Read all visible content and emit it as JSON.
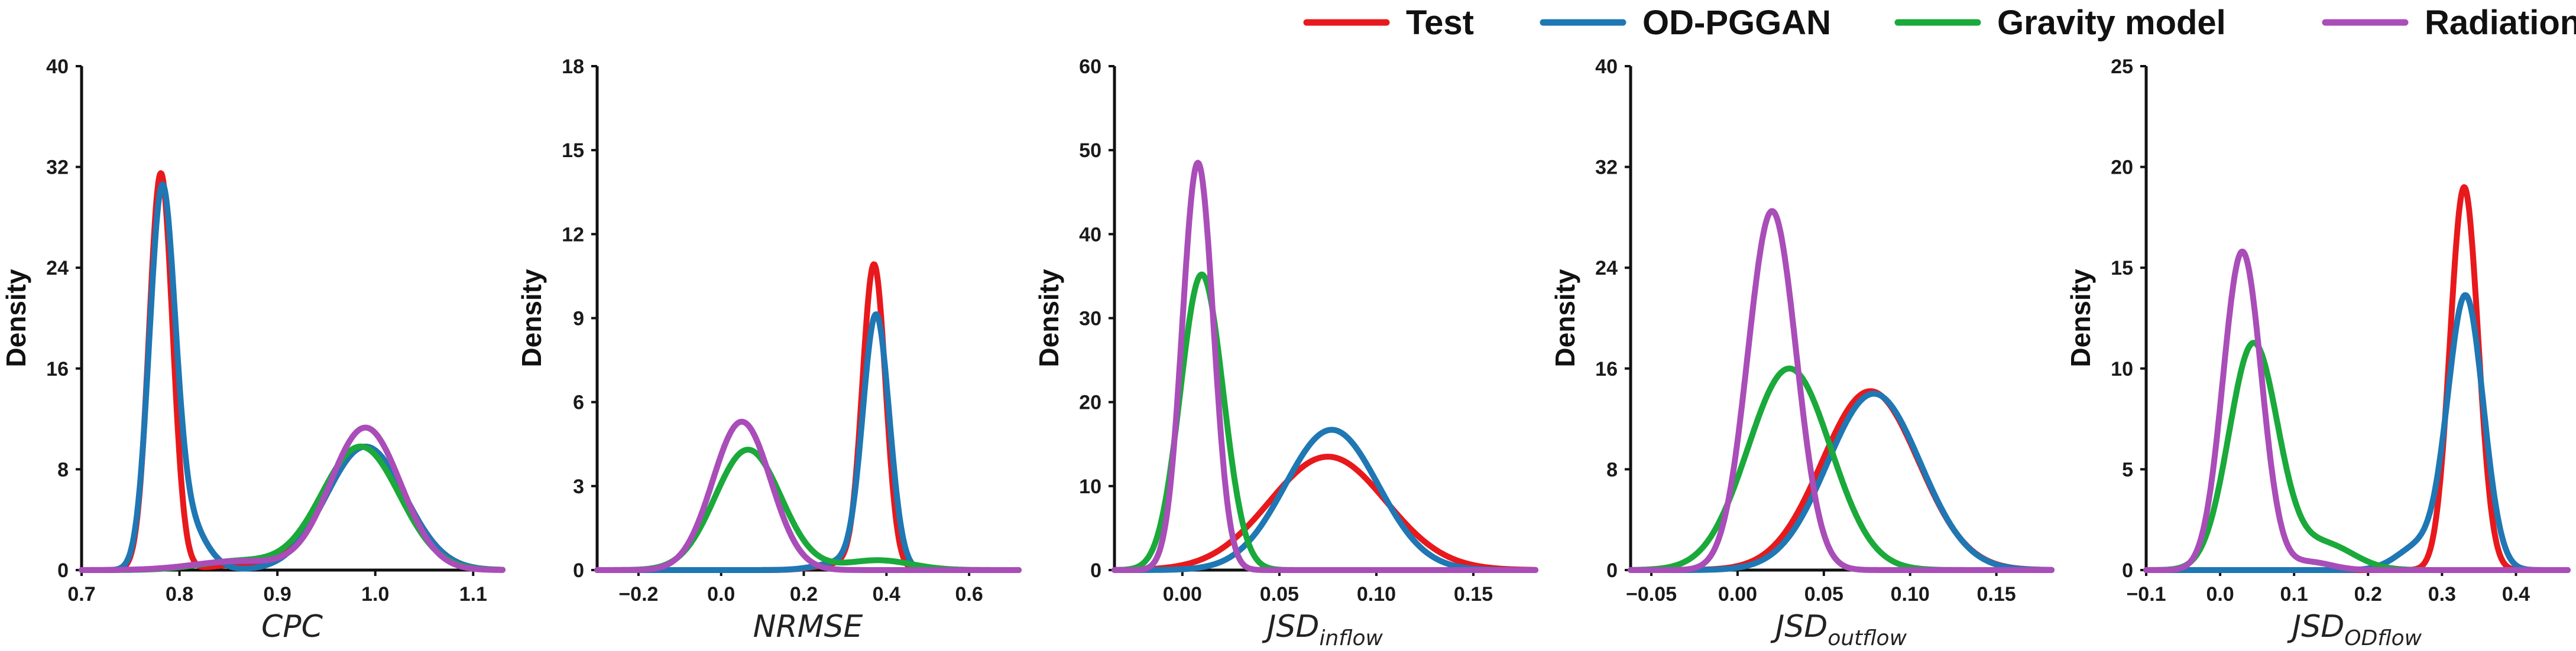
{
  "legend": [
    {
      "label": "Test",
      "color": "#e8191c"
    },
    {
      "label": "OD-PGGAN",
      "color": "#1f77b4"
    },
    {
      "label": "Gravity model",
      "color": "#1aa93a"
    },
    {
      "label": "Radiation",
      "color": "#a94db8"
    }
  ],
  "chart_data": [
    {
      "type": "line",
      "title": "",
      "xlabel": "CPC",
      "xlabel_sub": "",
      "ylabel": "Density",
      "xlim": [
        0.7,
        1.13
      ],
      "ylim": [
        0,
        40
      ],
      "xticks": [
        0.7,
        0.8,
        0.9,
        1.0,
        1.1
      ],
      "xtick_labels": [
        "0.7",
        "0.8",
        "0.9",
        "1.0",
        "1.1"
      ],
      "yticks": [
        0,
        8,
        16,
        24,
        32,
        40
      ],
      "ytick_labels": [
        "0",
        "8",
        "16",
        "24",
        "32",
        "40"
      ],
      "series": [
        {
          "name": "Test",
          "components": [
            {
              "mu": 0.781,
              "sigma": 0.012,
              "peak": 31.5
            },
            {
              "mu": 0.86,
              "sigma": 0.03,
              "peak": 0.4
            },
            {
              "mu": 0.99,
              "sigma": 0.04,
              "peak": 9.8
            }
          ]
        },
        {
          "name": "OD-PGGAN",
          "components": [
            {
              "mu": 0.782,
              "sigma": 0.013,
              "peak": 28.5
            },
            {
              "mu": 0.805,
              "sigma": 0.02,
              "peak": 4.0
            },
            {
              "mu": 0.99,
              "sigma": 0.04,
              "peak": 9.8
            }
          ]
        },
        {
          "name": "Gravity model",
          "components": [
            {
              "mu": 0.985,
              "sigma": 0.04,
              "peak": 9.8
            },
            {
              "mu": 0.86,
              "sigma": 0.04,
              "peak": 0.7
            }
          ]
        },
        {
          "name": "Radiation",
          "components": [
            {
              "mu": 0.99,
              "sigma": 0.036,
              "peak": 11.3
            },
            {
              "mu": 0.86,
              "sigma": 0.045,
              "peak": 0.7
            }
          ]
        }
      ]
    },
    {
      "type": "line",
      "title": "",
      "xlabel": "NRMSE",
      "xlabel_sub": "",
      "ylabel": "Density",
      "xlim": [
        -0.3,
        0.72
      ],
      "ylim": [
        0,
        18
      ],
      "xticks": [
        -0.2,
        0.0,
        0.2,
        0.4,
        0.6
      ],
      "xtick_labels": [
        "−0.2",
        "0.0",
        "0.2",
        "0.4",
        "0.6"
      ],
      "yticks": [
        0,
        3,
        6,
        9,
        12,
        15,
        18
      ],
      "ytick_labels": [
        "0",
        "3",
        "6",
        "9",
        "12",
        "15",
        "18"
      ],
      "series": [
        {
          "name": "Test",
          "components": [
            {
              "mu": 0.37,
              "sigma": 0.028,
              "peak": 10.8
            },
            {
              "mu": 0.3,
              "sigma": 0.06,
              "peak": 0.25
            }
          ]
        },
        {
          "name": "OD-PGGAN",
          "components": [
            {
              "mu": 0.375,
              "sigma": 0.032,
              "peak": 9.0
            },
            {
              "mu": 0.3,
              "sigma": 0.06,
              "peak": 0.3
            }
          ]
        },
        {
          "name": "Gravity model",
          "components": [
            {
              "mu": 0.065,
              "sigma": 0.08,
              "peak": 4.3
            },
            {
              "mu": 0.38,
              "sigma": 0.08,
              "peak": 0.35
            }
          ]
        },
        {
          "name": "Radiation",
          "components": [
            {
              "mu": 0.05,
              "sigma": 0.07,
              "peak": 5.3
            }
          ]
        }
      ]
    },
    {
      "type": "line",
      "title": "",
      "xlabel": "JSD",
      "xlabel_sub": "inflow",
      "ylabel": "Density",
      "xlim": [
        -0.035,
        0.182
      ],
      "ylim": [
        0,
        60
      ],
      "xticks": [
        0.0,
        0.05,
        0.1,
        0.15
      ],
      "xtick_labels": [
        "0.00",
        "0.05",
        "0.10",
        "0.15"
      ],
      "yticks": [
        0,
        10,
        20,
        30,
        40,
        50,
        60
      ],
      "ytick_labels": [
        "0",
        "10",
        "20",
        "30",
        "40",
        "50",
        "60"
      ],
      "series": [
        {
          "name": "Test",
          "components": [
            {
              "mu": 0.075,
              "sigma": 0.03,
              "peak": 13.5
            }
          ]
        },
        {
          "name": "OD-PGGAN",
          "components": [
            {
              "mu": 0.077,
              "sigma": 0.024,
              "peak": 16.7
            }
          ]
        },
        {
          "name": "Gravity model",
          "components": [
            {
              "mu": 0.01,
              "sigma": 0.011,
              "peak": 35.2
            }
          ]
        },
        {
          "name": "Radiation",
          "components": [
            {
              "mu": 0.008,
              "sigma": 0.008,
              "peak": 48.5
            }
          ]
        }
      ]
    },
    {
      "type": "line",
      "title": "",
      "xlabel": "JSD",
      "xlabel_sub": "outflow",
      "ylabel": "Density",
      "xlim": [
        -0.062,
        0.182
      ],
      "ylim": [
        0,
        40
      ],
      "xticks": [
        -0.05,
        0.0,
        0.05,
        0.1,
        0.15
      ],
      "xtick_labels": [
        "−0.05",
        "0.00",
        "0.05",
        "0.10",
        "0.15"
      ],
      "yticks": [
        0,
        8,
        16,
        24,
        32,
        40
      ],
      "ytick_labels": [
        "0",
        "8",
        "16",
        "24",
        "32",
        "40"
      ],
      "series": [
        {
          "name": "Test",
          "components": [
            {
              "mu": 0.077,
              "sigma": 0.028,
              "peak": 14.2
            }
          ]
        },
        {
          "name": "OD-PGGAN",
          "components": [
            {
              "mu": 0.079,
              "sigma": 0.027,
              "peak": 14.0
            }
          ]
        },
        {
          "name": "Gravity model",
          "components": [
            {
              "mu": 0.03,
              "sigma": 0.024,
              "peak": 16.0
            }
          ]
        },
        {
          "name": "Radiation",
          "components": [
            {
              "mu": 0.02,
              "sigma": 0.014,
              "peak": 28.5
            }
          ]
        }
      ]
    },
    {
      "type": "line",
      "title": "",
      "xlabel": "JSD",
      "xlabel_sub": "ODflow",
      "ylabel": "Density",
      "xlim": [
        -0.1,
        0.47
      ],
      "ylim": [
        0,
        25
      ],
      "xticks": [
        -0.1,
        0.0,
        0.1,
        0.2,
        0.3,
        0.4
      ],
      "xtick_labels": [
        "−0.1",
        "0.0",
        "0.1",
        "0.2",
        "0.3",
        "0.4"
      ],
      "yticks": [
        0,
        5,
        10,
        15,
        20,
        25
      ],
      "ytick_labels": [
        "0",
        "5",
        "10",
        "15",
        "20",
        "25"
      ],
      "series": [
        {
          "name": "Test",
          "components": [
            {
              "mu": 0.33,
              "sigma": 0.019,
              "peak": 19.0
            }
          ]
        },
        {
          "name": "OD-PGGAN",
          "components": [
            {
              "mu": 0.332,
              "sigma": 0.024,
              "peak": 13.5
            },
            {
              "mu": 0.27,
              "sigma": 0.03,
              "peak": 1.2
            }
          ]
        },
        {
          "name": "Gravity model",
          "components": [
            {
              "mu": 0.045,
              "sigma": 0.033,
              "peak": 11.2
            },
            {
              "mu": 0.14,
              "sigma": 0.04,
              "peak": 1.3
            }
          ]
        },
        {
          "name": "Radiation",
          "components": [
            {
              "mu": 0.03,
              "sigma": 0.026,
              "peak": 15.8
            },
            {
              "mu": 0.12,
              "sigma": 0.03,
              "peak": 0.4
            }
          ]
        }
      ]
    }
  ]
}
